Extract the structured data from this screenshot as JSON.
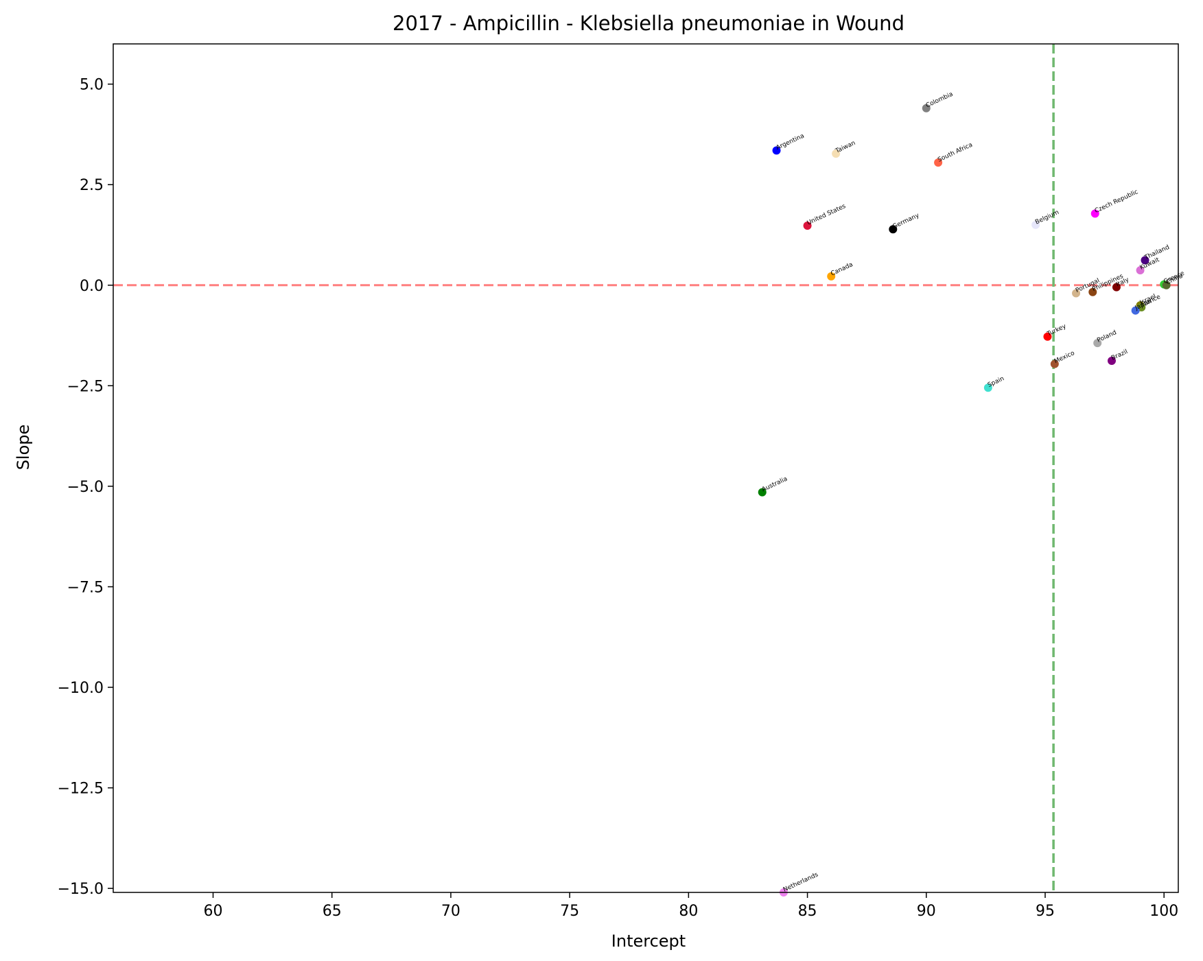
{
  "chart_data": {
    "type": "scatter",
    "title": "2017 - Ampicillin - Klebsiella pneumoniae in Wound",
    "xlabel": "Intercept",
    "ylabel": "Slope",
    "xlim": [
      55.8,
      100.6
    ],
    "ylim": [
      -15.1,
      6.0
    ],
    "xticks": [
      60,
      65,
      70,
      75,
      80,
      85,
      90,
      95,
      100
    ],
    "xtick_labels": [
      "60",
      "65",
      "70",
      "75",
      "80",
      "85",
      "90",
      "95",
      "100"
    ],
    "yticks": [
      5.0,
      2.5,
      0.0,
      -2.5,
      -5.0,
      -7.5,
      -10.0,
      -12.5,
      -15.0
    ],
    "ytick_labels": [
      "5.0",
      "2.5",
      "0.0",
      "−2.5",
      "−5.0",
      "−7.5",
      "−10.0",
      "−12.5",
      "−15.0"
    ],
    "grid": false,
    "reference_lines": [
      {
        "orientation": "horizontal",
        "value": 0.0,
        "color": "#ff7f7f",
        "style": "dashed"
      },
      {
        "orientation": "vertical",
        "value": 95.35,
        "color": "#6fb86f",
        "style": "dashed"
      }
    ],
    "points": [
      {
        "label": "Colombia",
        "x": 90.0,
        "y": 4.4,
        "color": "#808080"
      },
      {
        "label": "Argentina",
        "x": 83.7,
        "y": 3.35,
        "color": "#0000ff"
      },
      {
        "label": "Taiwan",
        "x": 86.2,
        "y": 3.27,
        "color": "#f5deb3"
      },
      {
        "label": "South Africa",
        "x": 90.5,
        "y": 3.05,
        "color": "#ff6347"
      },
      {
        "label": "Czech Republic",
        "x": 97.1,
        "y": 1.78,
        "color": "#ff00ff"
      },
      {
        "label": "United States",
        "x": 85.0,
        "y": 1.48,
        "color": "#dc143c"
      },
      {
        "label": "Belgium",
        "x": 94.6,
        "y": 1.5,
        "color": "#e6e6fa"
      },
      {
        "label": "Germany",
        "x": 88.6,
        "y": 1.39,
        "color": "#000000"
      },
      {
        "label": "Thailand",
        "x": 99.2,
        "y": 0.62,
        "color": "#4b0082"
      },
      {
        "label": "Kuwait",
        "x": 99.0,
        "y": 0.37,
        "color": "#da70d6"
      },
      {
        "label": "Canada",
        "x": 86.0,
        "y": 0.22,
        "color": "#ffa500"
      },
      {
        "label": "Greece",
        "x": 100.0,
        "y": 0.02,
        "color": "#32cd32"
      },
      {
        "label": "China",
        "x": 100.1,
        "y": 0.0,
        "color": "#556b2f"
      },
      {
        "label": "Italy",
        "x": 98.0,
        "y": -0.05,
        "color": "#800000"
      },
      {
        "label": "Philippines",
        "x": 97.0,
        "y": -0.17,
        "color": "#8b4513"
      },
      {
        "label": "Portugal",
        "x": 96.3,
        "y": -0.2,
        "color": "#d2b48c"
      },
      {
        "label": "Israel",
        "x": 99.0,
        "y": -0.5,
        "color": "#808000"
      },
      {
        "label": "France",
        "x": 99.05,
        "y": -0.55,
        "color": "#6b8e23"
      },
      {
        "label": "Japan",
        "x": 98.8,
        "y": -0.63,
        "color": "#4169e1"
      },
      {
        "label": "Turkey",
        "x": 95.1,
        "y": -1.28,
        "color": "#ff0000"
      },
      {
        "label": "Poland",
        "x": 97.2,
        "y": -1.44,
        "color": "#a9a9a9"
      },
      {
        "label": "Brazil",
        "x": 97.8,
        "y": -1.88,
        "color": "#800080"
      },
      {
        "label": "Mexico",
        "x": 95.4,
        "y": -1.96,
        "color": "#a0522d"
      },
      {
        "label": "Spain",
        "x": 92.6,
        "y": -2.55,
        "color": "#40e0d0"
      },
      {
        "label": "Australia",
        "x": 83.1,
        "y": -5.15,
        "color": "#008000"
      },
      {
        "label": "Netherlands",
        "x": 84.0,
        "y": -15.1,
        "color": "#ee82ee"
      }
    ]
  }
}
